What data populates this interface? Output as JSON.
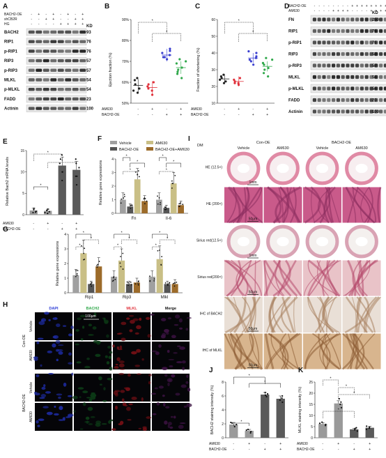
{
  "figure": {
    "panels": {
      "A": "A",
      "B": "B",
      "C": "C",
      "D": "D",
      "E": "E",
      "F": "F",
      "G": "G",
      "H": "H",
      "I": "I",
      "J": "J",
      "K": "K"
    }
  },
  "panelA": {
    "row_labels": [
      "BACH2-OE",
      "shCB2R",
      "HG"
    ],
    "rows": [
      [
        "-",
        "+",
        "-",
        "+",
        "-",
        "+",
        "-",
        "+"
      ],
      [
        "-",
        "-",
        "+",
        "+",
        "-",
        "-",
        "+",
        "+"
      ],
      [
        "-",
        "-",
        "-",
        "-",
        "+",
        "+",
        "+",
        "+"
      ]
    ],
    "kd_header": "KD",
    "blots": [
      {
        "name": "BACH2",
        "kd": "93"
      },
      {
        "name": "RIP1",
        "kd": "76"
      },
      {
        "name": "p-RIP1",
        "kd": "76"
      },
      {
        "name": "RIP3",
        "kd": "57"
      },
      {
        "name": "p-RIP3",
        "kd": "57"
      },
      {
        "name": "MLKL",
        "kd": "54"
      },
      {
        "name": "p-MLKL",
        "kd": "54"
      },
      {
        "name": "FADD",
        "kd": "23"
      },
      {
        "name": "Actinin",
        "kd": "100"
      }
    ]
  },
  "panelD": {
    "row_labels": [
      "BACH2-OE",
      "AM630"
    ],
    "rows": [
      [
        "-",
        "-",
        "-",
        "-",
        "-",
        "-",
        "-",
        "-",
        "+",
        "+",
        "+",
        "+",
        "+",
        "+",
        "+",
        "+"
      ],
      [
        "-",
        "-",
        "-",
        "-",
        "+",
        "+",
        "+",
        "+",
        "-",
        "-",
        "-",
        "-",
        "+",
        "+",
        "+",
        "+"
      ]
    ],
    "kd_header": "KD",
    "blots": [
      {
        "name": "FN",
        "kd": "250"
      },
      {
        "name": "RIP1",
        "kd": "76"
      },
      {
        "name": "p-RIP1",
        "kd": "76"
      },
      {
        "name": "RIP3",
        "kd": "57"
      },
      {
        "name": "p-RIP3",
        "kd": "57"
      },
      {
        "name": "MLKL",
        "kd": "54"
      },
      {
        "name": "p-MLKL",
        "kd": "54"
      },
      {
        "name": "FADD",
        "kd": "23"
      },
      {
        "name": "Actinin",
        "kd": "100"
      }
    ]
  },
  "treat_rows": {
    "am630": {
      "label": "AM630",
      "signs": [
        "-",
        "+",
        "-",
        "+"
      ]
    },
    "bach2": {
      "label": "BACH2-OE",
      "signs": [
        "-",
        "-",
        "+",
        "+"
      ]
    }
  },
  "chart_data": [
    {
      "panel": "B",
      "type": "scatter",
      "ylabel": "Ejection fraction (%)",
      "ylim": [
        50,
        90
      ],
      "yticks": [
        "50%",
        "60%",
        "70%",
        "80%",
        "90%"
      ],
      "ytick_values": [
        50,
        60,
        70,
        80,
        90
      ],
      "groups": [
        {
          "color": "#222222",
          "mean": 58.5,
          "points": [
            55,
            57,
            59,
            62,
            61,
            56
          ]
        },
        {
          "color": "#e0303a",
          "mean": 57.5,
          "points": [
            54,
            56,
            58,
            60,
            59,
            57
          ]
        },
        {
          "color": "#3a3fd0",
          "mean": 73,
          "points": [
            71,
            72,
            73,
            75,
            74,
            72,
            76
          ]
        },
        {
          "color": "#2fa84a",
          "mean": 67,
          "points": [
            62,
            64,
            67,
            69,
            70,
            66,
            71,
            65
          ]
        }
      ]
    },
    {
      "panel": "C",
      "type": "scatter",
      "ylabel": "Fraction of shortening (%)",
      "ylim": [
        10,
        60
      ],
      "yticks": [
        "10",
        "20",
        "30",
        "40",
        "50",
        "60"
      ],
      "ytick_values": [
        10,
        20,
        30,
        40,
        50,
        60
      ],
      "groups": [
        {
          "color": "#222222",
          "mean": 24.5,
          "points": [
            22,
            23,
            25,
            27,
            26,
            24
          ]
        },
        {
          "color": "#e0303a",
          "mean": 23,
          "points": [
            21,
            22,
            24,
            25,
            23,
            22
          ]
        },
        {
          "color": "#3a3fd0",
          "mean": 37,
          "points": [
            33,
            35,
            37,
            40,
            41,
            36,
            38
          ]
        },
        {
          "color": "#2fa84a",
          "mean": 32,
          "points": [
            26,
            28,
            31,
            34,
            36,
            30,
            37,
            33
          ]
        }
      ]
    },
    {
      "panel": "E",
      "type": "bar",
      "ylabel": "Relative Bach2 mRNA levels",
      "ylim": [
        0,
        15
      ],
      "yticks": [
        "0",
        "5",
        "10",
        "15"
      ],
      "ytick_values": [
        0,
        5,
        10,
        15
      ],
      "values": [
        1.0,
        0.9,
        11.5,
        10.5
      ],
      "errors": [
        0.5,
        0.4,
        2.0,
        2.0
      ],
      "colors": [
        "#9a9a9a",
        "#9a9a9a",
        "#5a5a5a",
        "#5a5a5a"
      ],
      "points": [
        [
          0.5,
          0.8,
          1.2,
          0.6,
          1.5
        ],
        [
          0.3,
          0.7,
          1.0,
          0.5,
          1.3
        ],
        [
          8,
          10,
          12,
          13,
          14,
          10
        ],
        [
          7,
          9,
          11,
          12,
          13,
          9
        ]
      ]
    },
    {
      "panel": "F",
      "type": "bar",
      "ylabel": "Relative gene expressions",
      "ylim": [
        0,
        4
      ],
      "yticks": [
        "0",
        "1",
        "2",
        "3",
        "4"
      ],
      "ytick_values": [
        0,
        1,
        2,
        3,
        4
      ],
      "categories": [
        "Fn",
        "Il-6"
      ],
      "series": [
        {
          "name": "Vehicle",
          "color": "#a0a0a0",
          "values": [
            1.0,
            1.0
          ],
          "errors": [
            0.5,
            0.5
          ]
        },
        {
          "name": "BACH2-OE",
          "color": "#555555",
          "values": [
            0.5,
            0.4
          ],
          "errors": [
            0.2,
            0.2
          ]
        },
        {
          "name": "AM630",
          "color": "#c9bf86",
          "values": [
            2.5,
            2.2
          ],
          "errors": [
            0.8,
            0.8
          ]
        },
        {
          "name": "BACH2-OE+AM630",
          "color": "#9c6b2a",
          "values": [
            0.9,
            0.6
          ],
          "errors": [
            0.4,
            0.3
          ]
        }
      ]
    },
    {
      "panel": "G",
      "type": "bar",
      "ylabel": "Relative gene expressions",
      "ylim": [
        0,
        4
      ],
      "yticks": [
        "0",
        "1",
        "2",
        "3",
        "4"
      ],
      "ytick_values": [
        0,
        1,
        2,
        3,
        4
      ],
      "categories": [
        "Rip1",
        "Rip3",
        "Mlkl"
      ],
      "series": [
        {
          "name": "Vehicle",
          "color": "#a0a0a0",
          "values": [
            1.2,
            1.1,
            1.1
          ],
          "errors": [
            0.4,
            0.4,
            0.4
          ]
        },
        {
          "name": "AM630",
          "color": "#c9bf86",
          "values": [
            2.7,
            2.2,
            2.3
          ],
          "errors": [
            0.9,
            0.8,
            0.9
          ]
        },
        {
          "name": "BACH2-OE",
          "color": "#555555",
          "values": [
            0.6,
            0.6,
            0.6
          ],
          "errors": [
            0.2,
            0.2,
            0.2
          ]
        },
        {
          "name": "BACH2-OE+AM630",
          "color": "#9c6b2a",
          "values": [
            1.8,
            0.7,
            0.6
          ],
          "errors": [
            0.6,
            0.3,
            0.3
          ]
        }
      ]
    },
    {
      "panel": "J",
      "type": "bar",
      "ylabel": "BACH2 staining intensity (%)",
      "ylim": [
        0,
        8
      ],
      "yticks": [
        "0",
        "2",
        "4",
        "6",
        "8"
      ],
      "ytick_values": [
        0,
        2,
        4,
        6,
        8
      ],
      "values": [
        1.9,
        1.0,
        6.2,
        5.6
      ],
      "errors": [
        0.3,
        0.2,
        0.3,
        0.4
      ],
      "colors": [
        "#9a9a9a",
        "#9a9a9a",
        "#5a5a5a",
        "#5a5a5a"
      ],
      "points": [
        [
          1.6,
          1.9,
          2.1,
          2.2
        ],
        [
          0.7,
          0.9,
          1.1,
          1.2
        ],
        [
          5.9,
          6.1,
          6.3,
          6.5
        ],
        [
          5.1,
          5.4,
          5.7,
          6.0
        ]
      ]
    },
    {
      "panel": "K",
      "type": "bar",
      "ylabel": "MLKL staining intensity (%)",
      "ylim": [
        0,
        25
      ],
      "yticks": [
        "0",
        "5",
        "10",
        "15",
        "20",
        "25"
      ],
      "ytick_values": [
        0,
        5,
        10,
        15,
        20,
        25
      ],
      "values": [
        6.2,
        15.4,
        3.8,
        4.5
      ],
      "errors": [
        0.6,
        1.2,
        0.5,
        0.6
      ],
      "colors": [
        "#9a9a9a",
        "#9a9a9a",
        "#5a5a5a",
        "#5a5a5a"
      ],
      "points": [
        [
          5.5,
          6.0,
          6.5,
          7.0
        ],
        [
          13.5,
          15.0,
          16.0,
          17.5
        ],
        [
          3.0,
          3.6,
          4.2,
          4.5
        ],
        [
          3.8,
          4.3,
          4.8,
          5.2
        ]
      ]
    }
  ],
  "chart_text": {
    "B": {
      "ylabel": "Ejection fraction (%)"
    },
    "C": {
      "ylabel": "Fraction of shortening (%)"
    },
    "E": {
      "ylabel": "Relative Bach2 mRNA levels"
    },
    "F": {
      "ylabel": "Relative gene expressions",
      "cat1": "Fn",
      "cat2": "Il-6",
      "legend": [
        "Vehicle",
        "BACH2-OE",
        "AM630",
        "BACH2-OE+AM630"
      ]
    },
    "G": {
      "ylabel": "Relative gene expressions",
      "cat1": "Rip1",
      "cat2": "Rip3",
      "cat3": "Mlkl"
    },
    "J": {
      "ylabel": "BACH2 staining intensity (%)"
    },
    "K": {
      "ylabel": "MLKL staining intensity (%)"
    }
  },
  "panelH": {
    "headers": [
      "DAPI",
      "BACH2",
      "MLKL",
      "Merge"
    ],
    "header_colors": [
      "#2b3bd6",
      "#2fa84a",
      "#e0303a",
      "#111111"
    ],
    "groups": [
      "Con-OE",
      "BACH2-OE"
    ],
    "rows": [
      "Vehicle",
      "AM630",
      "Vehicle",
      "AM630"
    ],
    "scalebar": "100μm"
  },
  "panelI": {
    "dm": "DM",
    "groups": [
      "Con-OE",
      "BACH2-OE"
    ],
    "cols": [
      "Vehicle",
      "AM630",
      "Vehicle",
      "AM630"
    ],
    "rows": [
      "HE (12.5×)",
      "HE (200×)",
      "Sirius red(12.5×)",
      "Sirius red(200×)",
      "IHC of BACH2",
      "IHC of MLKL"
    ],
    "scalebars": [
      "1mm",
      "50μm",
      "1mm",
      "50μm",
      "50μm",
      "50μm"
    ]
  },
  "star": "*"
}
